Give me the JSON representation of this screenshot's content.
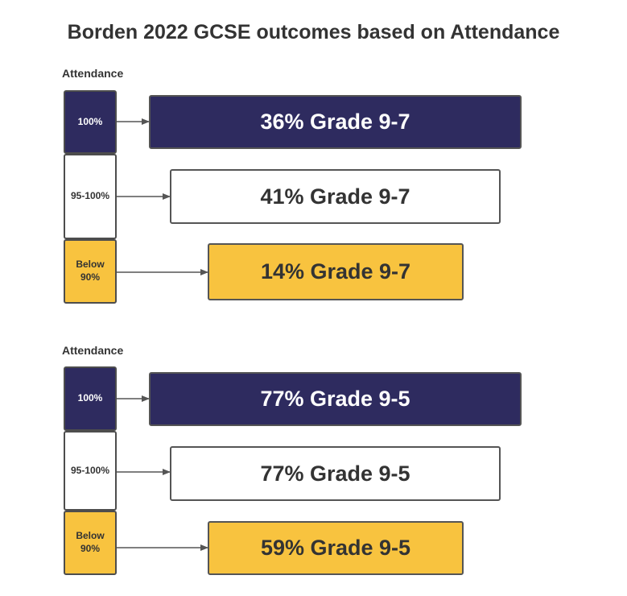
{
  "title": "Borden 2022 GCSE outcomes based on Attendance",
  "colors": {
    "navy": "#2e2b5f",
    "white": "#ffffff",
    "yellow": "#f8c33f",
    "outline": "#4d4d4d"
  },
  "groups": [
    {
      "label": "Attendance",
      "rows": [
        {
          "category": "100%",
          "result": "36% Grade 9-7"
        },
        {
          "category": "95-100%",
          "result": "41% Grade 9-7"
        },
        {
          "category": "Below 90%",
          "result": "14% Grade 9-7"
        }
      ]
    },
    {
      "label": "Attendance",
      "rows": [
        {
          "category": "100%",
          "result": "77% Grade 9-5"
        },
        {
          "category": "95-100%",
          "result": "77% Grade 9-5"
        },
        {
          "category": "Below 90%",
          "result": "59% Grade 9-5"
        }
      ]
    }
  ]
}
